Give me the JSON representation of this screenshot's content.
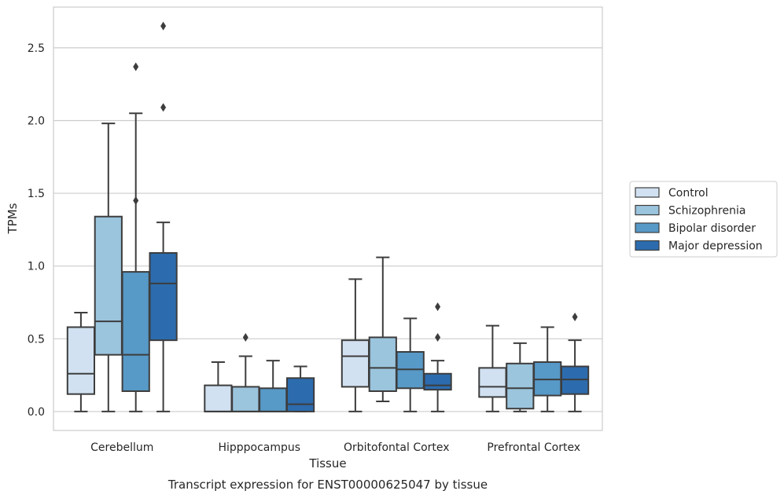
{
  "chart_data": {
    "type": "box",
    "xlabel": "Tissue",
    "ylabel": "TPMs",
    "caption": "Transcript expression for ENST00000625047 by tissue",
    "ylim": [
      -0.13,
      2.78
    ],
    "yticks": [
      "0.0",
      "0.5",
      "1.0",
      "1.5",
      "2.0",
      "2.5"
    ],
    "ytick_values": [
      0.0,
      0.5,
      1.0,
      1.5,
      2.0,
      2.5
    ],
    "grid": "horizontal",
    "legend_position": "right",
    "categories": [
      "Cerebellum",
      "Hipppocampus",
      "Orbitofontal Cortex",
      "Prefrontal Cortex"
    ],
    "series": [
      {
        "name": "Control",
        "color": "#d1e1f1",
        "boxes": [
          {
            "whislo": 0.0,
            "q1": 0.12,
            "med": 0.26,
            "q3": 0.58,
            "whishi": 0.68,
            "fliers": []
          },
          {
            "whislo": 0.0,
            "q1": 0.0,
            "med": 0.0,
            "q3": 0.18,
            "whishi": 0.34,
            "fliers": []
          },
          {
            "whislo": 0.0,
            "q1": 0.17,
            "med": 0.38,
            "q3": 0.49,
            "whishi": 0.91,
            "fliers": []
          },
          {
            "whislo": 0.0,
            "q1": 0.1,
            "med": 0.17,
            "q3": 0.3,
            "whishi": 0.59,
            "fliers": []
          }
        ]
      },
      {
        "name": "Schizophrenia",
        "color": "#9bc4dd",
        "boxes": [
          {
            "whislo": 0.0,
            "q1": 0.39,
            "med": 0.62,
            "q3": 1.34,
            "whishi": 1.98,
            "fliers": []
          },
          {
            "whislo": 0.0,
            "q1": 0.0,
            "med": 0.0,
            "q3": 0.17,
            "whishi": 0.38,
            "fliers": [
              0.51
            ]
          },
          {
            "whislo": 0.07,
            "q1": 0.14,
            "med": 0.3,
            "q3": 0.51,
            "whishi": 1.06,
            "fliers": []
          },
          {
            "whislo": 0.0,
            "q1": 0.02,
            "med": 0.16,
            "q3": 0.33,
            "whishi": 0.47,
            "fliers": []
          }
        ]
      },
      {
        "name": "Bipolar disorder",
        "color": "#5799c7",
        "boxes": [
          {
            "whislo": 0.0,
            "q1": 0.14,
            "med": 0.39,
            "q3": 0.96,
            "whishi": 2.05,
            "fliers": [
              1.45,
              2.37
            ]
          },
          {
            "whislo": 0.0,
            "q1": 0.0,
            "med": 0.0,
            "q3": 0.16,
            "whishi": 0.35,
            "fliers": []
          },
          {
            "whislo": 0.0,
            "q1": 0.16,
            "med": 0.29,
            "q3": 0.41,
            "whishi": 0.64,
            "fliers": []
          },
          {
            "whislo": 0.0,
            "q1": 0.11,
            "med": 0.22,
            "q3": 0.34,
            "whishi": 0.58,
            "fliers": []
          }
        ]
      },
      {
        "name": "Major depression",
        "color": "#2c6cae",
        "boxes": [
          {
            "whislo": 0.0,
            "q1": 0.49,
            "med": 0.88,
            "q3": 1.09,
            "whishi": 1.3,
            "fliers": [
              2.09,
              2.65
            ]
          },
          {
            "whislo": 0.0,
            "q1": 0.0,
            "med": 0.05,
            "q3": 0.23,
            "whishi": 0.31,
            "fliers": []
          },
          {
            "whislo": 0.0,
            "q1": 0.15,
            "med": 0.18,
            "q3": 0.26,
            "whishi": 0.35,
            "fliers": [
              0.51,
              0.72
            ]
          },
          {
            "whislo": 0.0,
            "q1": 0.12,
            "med": 0.22,
            "q3": 0.31,
            "whishi": 0.49,
            "fliers": [
              0.65
            ]
          }
        ]
      }
    ]
  }
}
